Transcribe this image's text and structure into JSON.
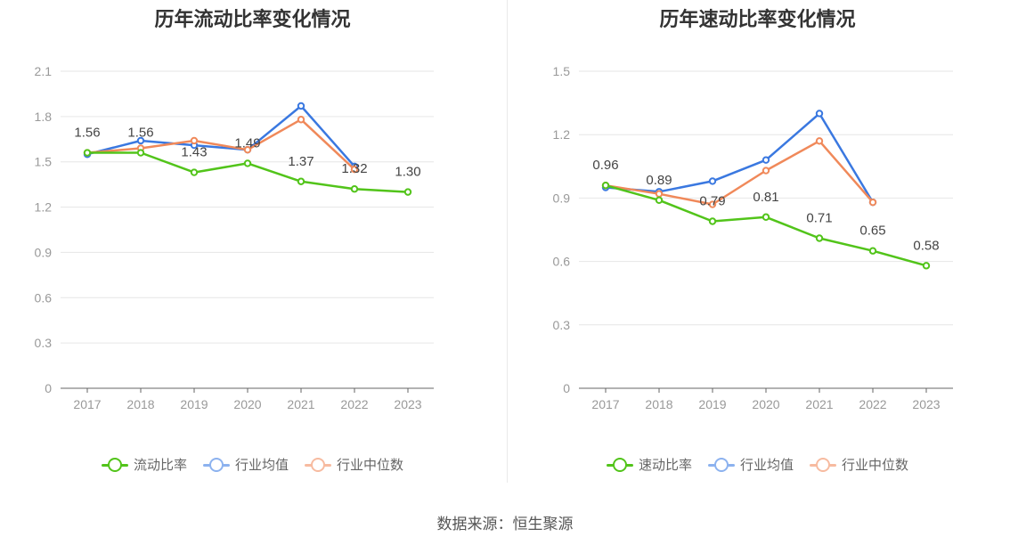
{
  "source": "数据来源：恒生聚源",
  "chart_data": [
    {
      "type": "line",
      "title": "历年流动比率变化情况",
      "categories": [
        "2017",
        "2018",
        "2019",
        "2020",
        "2021",
        "2022",
        "2023"
      ],
      "ylim": [
        0,
        2.1
      ],
      "yticks": [
        "0",
        "0.3",
        "0.6",
        "0.9",
        "1.2",
        "1.5",
        "1.8",
        "2.1"
      ],
      "grid": true,
      "legend_position": "bottom",
      "series": [
        {
          "name": "流动比率",
          "color": "#52c41a",
          "values": [
            1.56,
            1.56,
            1.43,
            1.49,
            1.37,
            1.32,
            1.3
          ],
          "labels": [
            "1.56",
            "1.56",
            "1.43",
            "1.49",
            "1.37",
            "1.32",
            "1.30"
          ]
        },
        {
          "name": "行业均值",
          "color": "#3a78e0",
          "values": [
            1.55,
            1.64,
            1.61,
            1.58,
            1.87,
            1.47,
            null
          ]
        },
        {
          "name": "行业中位数",
          "color": "#f0895a",
          "values": [
            1.56,
            1.59,
            1.64,
            1.58,
            1.78,
            1.45,
            null
          ]
        }
      ]
    },
    {
      "type": "line",
      "title": "历年速动比率变化情况",
      "categories": [
        "2017",
        "2018",
        "2019",
        "2020",
        "2021",
        "2022",
        "2023"
      ],
      "ylim": [
        0,
        1.5
      ],
      "yticks": [
        "0",
        "0.3",
        "0.6",
        "0.9",
        "1.2",
        "1.5"
      ],
      "grid": true,
      "legend_position": "bottom",
      "series": [
        {
          "name": "速动比率",
          "color": "#52c41a",
          "values": [
            0.96,
            0.89,
            0.79,
            0.81,
            0.71,
            0.65,
            0.58
          ],
          "labels": [
            "0.96",
            "0.89",
            "0.79",
            "0.81",
            "0.71",
            "0.65",
            "0.58"
          ]
        },
        {
          "name": "行业均值",
          "color": "#3a78e0",
          "values": [
            0.95,
            0.93,
            0.98,
            1.08,
            1.3,
            0.88,
            null
          ]
        },
        {
          "name": "行业中位数",
          "color": "#f0895a",
          "values": [
            0.96,
            0.92,
            0.87,
            1.03,
            1.17,
            0.88,
            null
          ]
        }
      ]
    }
  ]
}
